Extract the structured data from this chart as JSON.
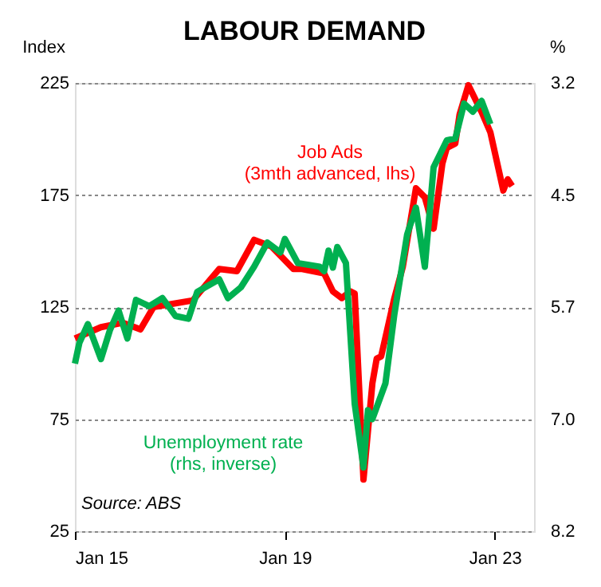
{
  "chart_data": {
    "type": "line",
    "title": "LABOUR DEMAND",
    "ylabel": "Index",
    "y2label": "%",
    "xlim": [
      "2015-01",
      "2023-10"
    ],
    "xticks": [
      {
        "value": "2015-01",
        "label": "Jan 15"
      },
      {
        "value": "2019-01",
        "label": "Jan 19"
      },
      {
        "value": "2023-01",
        "label": "Jan 23"
      }
    ],
    "ylim": [
      25,
      225
    ],
    "yticks": [
      25,
      75,
      125,
      175,
      225
    ],
    "y2lim": [
      8.2,
      3.2
    ],
    "y2ticks": [
      {
        "value": 8.2,
        "label": "8.2"
      },
      {
        "value": 6.95,
        "label": "7.0"
      },
      {
        "value": 5.7,
        "label": "5.7"
      },
      {
        "value": 4.45,
        "label": "4.5"
      },
      {
        "value": 3.2,
        "label": "3.2"
      }
    ],
    "grid": "y",
    "line_style": "solid",
    "marker": "none",
    "series": [
      {
        "name": "Job Ads\n(3mth advanced, lhs)",
        "color": "#ff0000",
        "x": [
          "2015-01",
          "2015-07",
          "2015-12",
          "2016-04",
          "2016-07",
          "2017-04",
          "2017-10",
          "2018-02",
          "2018-06",
          "2018-10",
          "2019-03",
          "2019-05",
          "2019-10",
          "2019-12",
          "2020-02",
          "2020-04",
          "2020-05",
          "2020-07",
          "2020-09",
          "2020-10",
          "2020-11",
          "2021-02",
          "2021-04",
          "2021-07",
          "2021-09",
          "2021-11",
          "2022-01",
          "2022-02",
          "2022-04",
          "2022-05",
          "2022-07",
          "2022-10",
          "2022-12",
          "2023-03",
          "2023-04",
          "2023-05"
        ],
        "values": [
          111,
          116,
          118,
          115,
          125,
          128,
          142,
          141,
          155,
          152,
          142,
          142,
          140,
          132,
          129,
          132,
          131,
          48,
          91,
          102,
          103,
          129,
          143,
          178,
          174,
          160,
          189,
          196,
          198,
          211,
          224,
          212,
          203,
          177,
          182,
          179
        ]
      },
      {
        "name": "Unemployment rate\n(rhs, inverse)",
        "color": "#00b050",
        "axis": "y2",
        "x": [
          "2015-01",
          "2015-02",
          "2015-04",
          "2015-07",
          "2015-09",
          "2015-11",
          "2016-01",
          "2016-03",
          "2016-06",
          "2016-09",
          "2016-12",
          "2017-03",
          "2017-05",
          "2017-10",
          "2017-12",
          "2018-03",
          "2018-06",
          "2018-09",
          "2018-12",
          "2019-01",
          "2019-04",
          "2019-09",
          "2019-10",
          "2019-11",
          "2019-12",
          "2020-01",
          "2020-03",
          "2020-05",
          "2020-07",
          "2020-08",
          "2020-09",
          "2020-12",
          "2021-02",
          "2021-05",
          "2021-07",
          "2021-09",
          "2021-11",
          "2022-02",
          "2022-04",
          "2022-06",
          "2022-08",
          "2022-10",
          "2022-12"
        ],
        "values": [
          6.33,
          6.1,
          5.89,
          6.28,
          5.96,
          5.74,
          6.05,
          5.62,
          5.69,
          5.6,
          5.8,
          5.83,
          5.53,
          5.39,
          5.6,
          5.48,
          5.25,
          4.98,
          5.09,
          4.94,
          5.21,
          5.25,
          5.3,
          5.07,
          5.26,
          5.03,
          5.21,
          6.78,
          7.49,
          6.85,
          6.95,
          6.55,
          5.78,
          4.89,
          4.59,
          5.25,
          4.14,
          3.84,
          3.82,
          3.43,
          3.52,
          3.4,
          3.66
        ]
      }
    ],
    "annotations": [
      "Source: ABS"
    ]
  }
}
